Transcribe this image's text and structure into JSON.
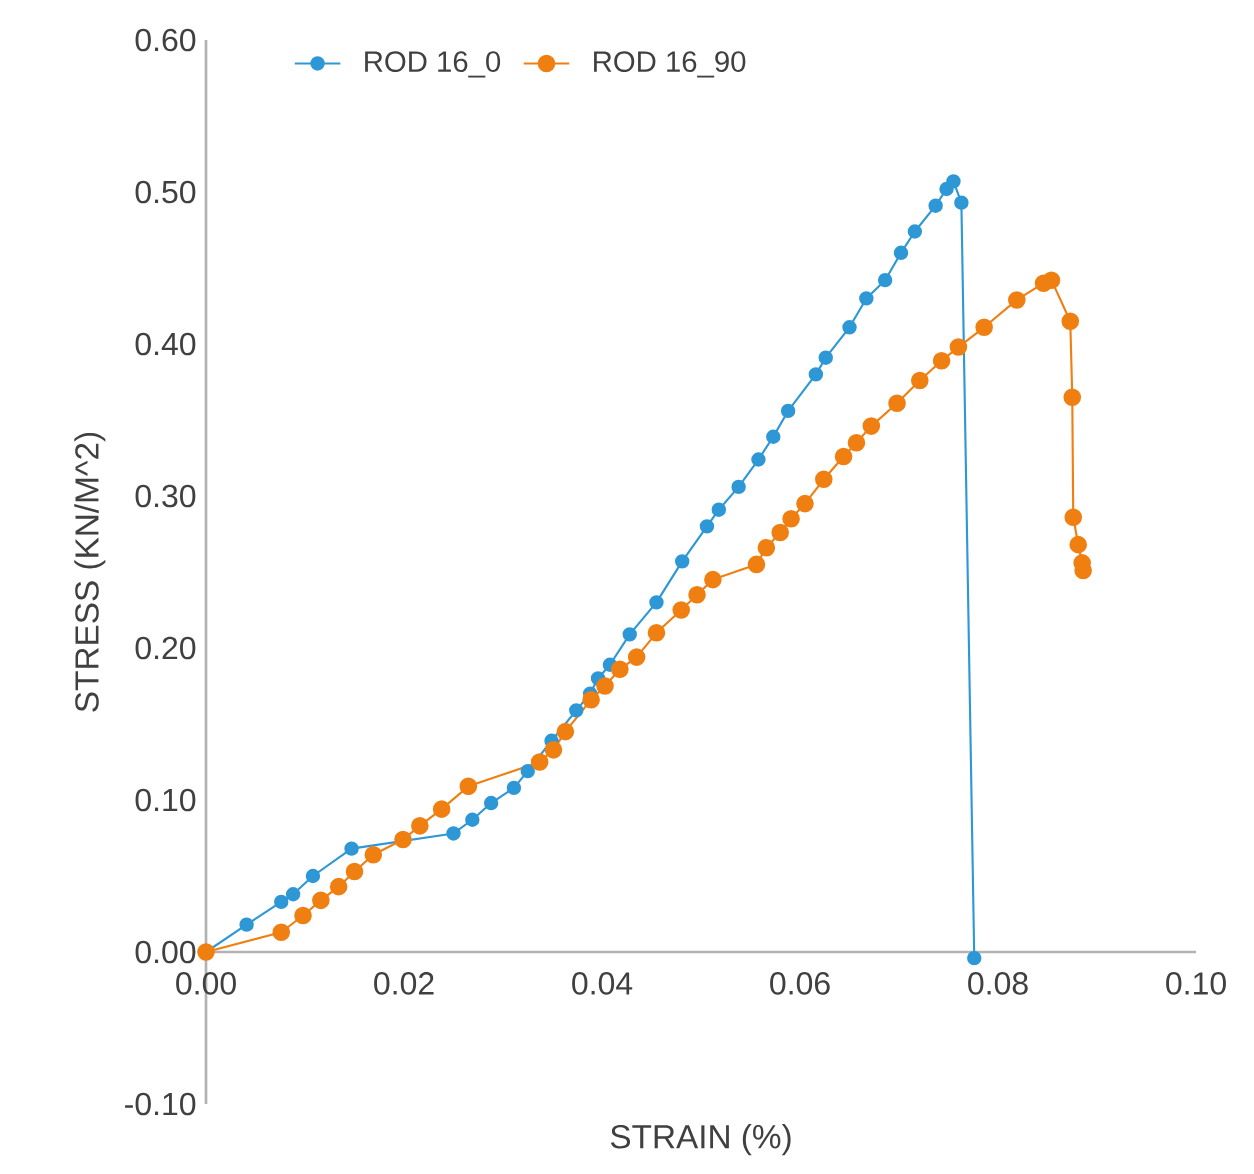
{
  "chart_data": {
    "type": "line",
    "xlabel": "STRAIN (%)",
    "ylabel": "STRESS (KN/M^2)",
    "xlim": [
      0,
      0.1
    ],
    "ylim": [
      -0.1,
      0.6
    ],
    "xticks": [
      {
        "value": 0,
        "label": "0.00"
      },
      {
        "value": 0.02,
        "label": "0.02"
      },
      {
        "value": 0.04,
        "label": "0.04"
      },
      {
        "value": 0.06,
        "label": "0.06"
      },
      {
        "value": 0.08,
        "label": "0.08"
      },
      {
        "value": 0.1,
        "label": "0.10"
      }
    ],
    "yticks": [
      {
        "value": -0.1,
        "label": "-0.10"
      },
      {
        "value": 0,
        "label": "0.00"
      },
      {
        "value": 0.1,
        "label": "0.10"
      },
      {
        "value": 0.2,
        "label": "0.20"
      },
      {
        "value": 0.3,
        "label": "0.30"
      },
      {
        "value": 0.4,
        "label": "0.40"
      },
      {
        "value": 0.5,
        "label": "0.50"
      },
      {
        "value": 0.6,
        "label": "0.60"
      }
    ],
    "grid": false,
    "legend": "top",
    "marker": "circle",
    "line_style": "solid",
    "series": [
      {
        "name": "ROD 16_0",
        "color": "#2e97d6",
        "x": [
          0,
          0.0041,
          0.0076,
          0.0088,
          0.0108,
          0.0147,
          0.025,
          0.0269,
          0.0288,
          0.0311,
          0.0325,
          0.0349,
          0.0374,
          0.0388,
          0.0396,
          0.0408,
          0.0428,
          0.0455,
          0.0481,
          0.0506,
          0.0518,
          0.0538,
          0.0558,
          0.0573,
          0.0588,
          0.0616,
          0.0626,
          0.065,
          0.0667,
          0.0686,
          0.0702,
          0.0716,
          0.0737,
          0.0748,
          0.0755,
          0.0763,
          0.0776
        ],
        "values": [
          0,
          0.018,
          0.033,
          0.038,
          0.05,
          0.068,
          0.078,
          0.087,
          0.098,
          0.108,
          0.119,
          0.139,
          0.159,
          0.17,
          0.18,
          0.189,
          0.209,
          0.23,
          0.257,
          0.28,
          0.291,
          0.306,
          0.324,
          0.339,
          0.356,
          0.38,
          0.391,
          0.411,
          0.43,
          0.442,
          0.46,
          0.474,
          0.491,
          0.502,
          0.507,
          0.493,
          -0.004
        ]
      },
      {
        "name": "ROD 16_90",
        "color": "#f07f12",
        "x": [
          0,
          0.0076,
          0.0098,
          0.0116,
          0.0134,
          0.015,
          0.0169,
          0.0199,
          0.0216,
          0.0238,
          0.0265,
          0.0337,
          0.0351,
          0.0363,
          0.0389,
          0.0403,
          0.0418,
          0.0435,
          0.0455,
          0.048,
          0.0496,
          0.0512,
          0.0556,
          0.0566,
          0.058,
          0.0591,
          0.0605,
          0.0624,
          0.0644,
          0.0657,
          0.0672,
          0.0698,
          0.0721,
          0.0743,
          0.076,
          0.0786,
          0.0819,
          0.0846,
          0.0854,
          0.0873,
          0.0875,
          0.0876,
          0.0881,
          0.0885,
          0.0886
        ],
        "values": [
          0,
          0.013,
          0.024,
          0.034,
          0.043,
          0.053,
          0.064,
          0.074,
          0.083,
          0.094,
          0.109,
          0.125,
          0.133,
          0.145,
          0.166,
          0.175,
          0.186,
          0.194,
          0.21,
          0.225,
          0.235,
          0.245,
          0.255,
          0.266,
          0.276,
          0.285,
          0.295,
          0.311,
          0.326,
          0.335,
          0.346,
          0.361,
          0.376,
          0.389,
          0.398,
          0.411,
          0.429,
          0.44,
          0.442,
          0.415,
          0.365,
          0.286,
          0.268,
          0.256,
          0.251
        ]
      }
    ]
  }
}
